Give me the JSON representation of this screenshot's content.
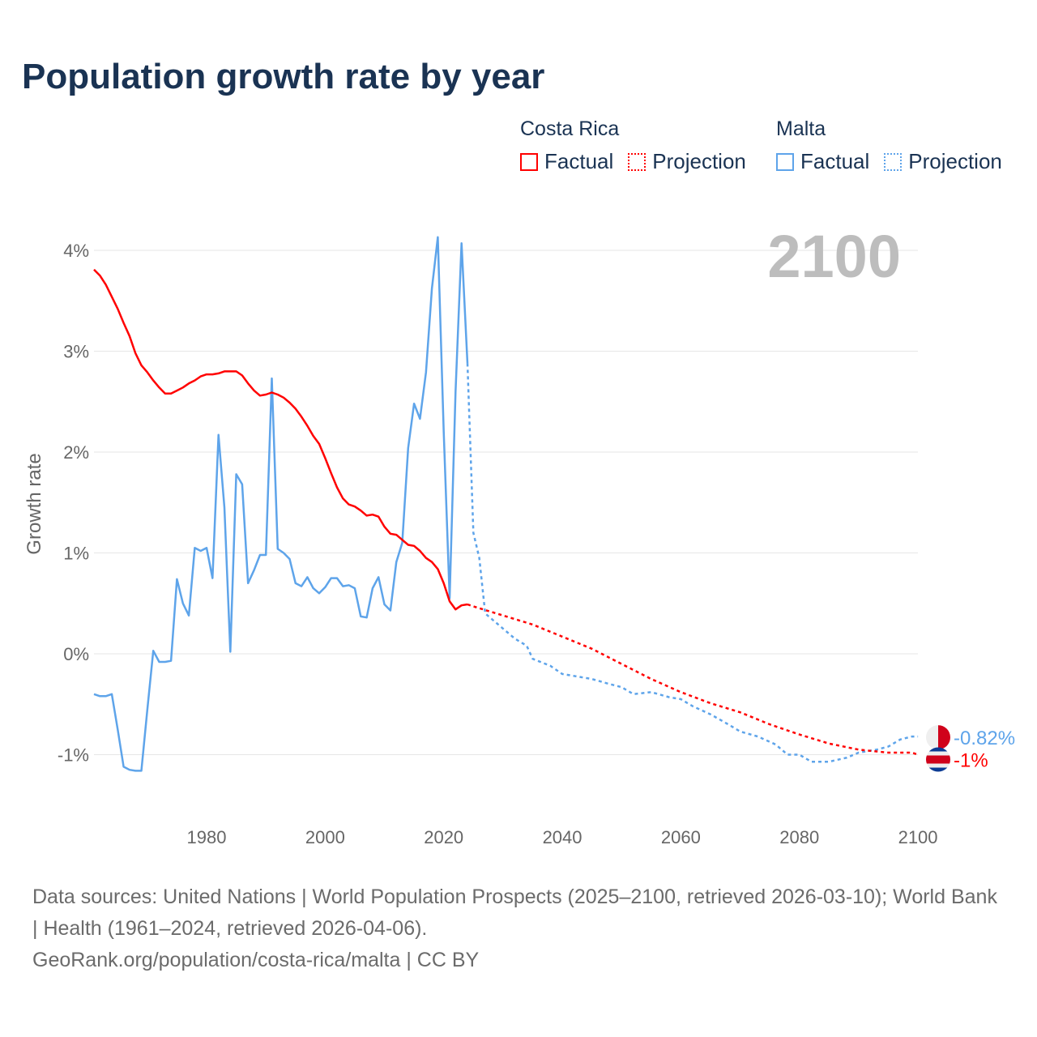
{
  "title": "Population growth rate by year",
  "legend": {
    "groups": [
      {
        "name": "Costa Rica",
        "color": "#ff0000",
        "factual": "Factual",
        "projection": "Projection"
      },
      {
        "name": "Malta",
        "color": "#5ea4ea",
        "factual": "Factual",
        "projection": "Projection"
      }
    ]
  },
  "chart_data": {
    "type": "line",
    "title": "Population growth rate by year",
    "ylabel": "Growth rate",
    "xlabel": "",
    "year_label": "2100",
    "xlim": [
      1961,
      2100
    ],
    "ylim": [
      -1.5,
      4.2
    ],
    "x_ticks": [
      {
        "v": 1980,
        "label": "1980"
      },
      {
        "v": 2000,
        "label": "2000"
      },
      {
        "v": 2020,
        "label": "2020"
      },
      {
        "v": 2040,
        "label": "2040"
      },
      {
        "v": 2060,
        "label": "2060"
      },
      {
        "v": 2080,
        "label": "2080"
      },
      {
        "v": 2100,
        "label": "2100"
      }
    ],
    "y_ticks": [
      {
        "v": 4,
        "label": "4%"
      },
      {
        "v": 3,
        "label": "3%"
      },
      {
        "v": 2,
        "label": "2%"
      },
      {
        "v": 1,
        "label": "1%"
      },
      {
        "v": 0,
        "label": "0%"
      },
      {
        "v": -1,
        "label": "-1%"
      }
    ],
    "grid": true,
    "series": [
      {
        "name": "Costa Rica",
        "color": "#ff0000",
        "end_label": "-1%",
        "factual": [
          [
            1961,
            3.81
          ],
          [
            1962,
            3.75
          ],
          [
            1963,
            3.66
          ],
          [
            1964,
            3.54
          ],
          [
            1965,
            3.42
          ],
          [
            1966,
            3.28
          ],
          [
            1967,
            3.15
          ],
          [
            1968,
            2.98
          ],
          [
            1969,
            2.86
          ],
          [
            1970,
            2.79
          ],
          [
            1971,
            2.71
          ],
          [
            1972,
            2.64
          ],
          [
            1973,
            2.58
          ],
          [
            1974,
            2.58
          ],
          [
            1975,
            2.61
          ],
          [
            1976,
            2.64
          ],
          [
            1977,
            2.68
          ],
          [
            1978,
            2.71
          ],
          [
            1979,
            2.75
          ],
          [
            1980,
            2.77
          ],
          [
            1981,
            2.77
          ],
          [
            1982,
            2.78
          ],
          [
            1983,
            2.8
          ],
          [
            1984,
            2.8
          ],
          [
            1985,
            2.8
          ],
          [
            1986,
            2.76
          ],
          [
            1987,
            2.68
          ],
          [
            1988,
            2.61
          ],
          [
            1989,
            2.56
          ],
          [
            1990,
            2.57
          ],
          [
            1991,
            2.59
          ],
          [
            1992,
            2.57
          ],
          [
            1993,
            2.54
          ],
          [
            1994,
            2.49
          ],
          [
            1995,
            2.43
          ],
          [
            1996,
            2.35
          ],
          [
            1997,
            2.26
          ],
          [
            1998,
            2.16
          ],
          [
            1999,
            2.08
          ],
          [
            2000,
            1.94
          ],
          [
            2001,
            1.79
          ],
          [
            2002,
            1.65
          ],
          [
            2003,
            1.54
          ],
          [
            2004,
            1.48
          ],
          [
            2005,
            1.46
          ],
          [
            2006,
            1.42
          ],
          [
            2007,
            1.37
          ],
          [
            2008,
            1.38
          ],
          [
            2009,
            1.36
          ],
          [
            2010,
            1.26
          ],
          [
            2011,
            1.19
          ],
          [
            2012,
            1.18
          ],
          [
            2013,
            1.13
          ],
          [
            2014,
            1.08
          ],
          [
            2015,
            1.07
          ],
          [
            2016,
            1.02
          ],
          [
            2017,
            0.95
          ],
          [
            2018,
            0.91
          ],
          [
            2019,
            0.84
          ],
          [
            2020,
            0.7
          ],
          [
            2021,
            0.52
          ],
          [
            2022,
            0.44
          ],
          [
            2023,
            0.48
          ],
          [
            2024,
            0.49
          ]
        ],
        "projection": [
          [
            2024,
            0.49
          ],
          [
            2025,
            0.47
          ],
          [
            2030,
            0.38
          ],
          [
            2035,
            0.29
          ],
          [
            2040,
            0.17
          ],
          [
            2045,
            0.05
          ],
          [
            2050,
            -0.1
          ],
          [
            2055,
            -0.25
          ],
          [
            2060,
            -0.38
          ],
          [
            2065,
            -0.49
          ],
          [
            2070,
            -0.58
          ],
          [
            2075,
            -0.7
          ],
          [
            2080,
            -0.8
          ],
          [
            2085,
            -0.89
          ],
          [
            2090,
            -0.95
          ],
          [
            2095,
            -0.98
          ],
          [
            2099,
            -0.98
          ],
          [
            2100,
            -1.0
          ]
        ]
      },
      {
        "name": "Malta",
        "color": "#5ea4ea",
        "end_label": "-0.82%",
        "factual": [
          [
            1961,
            -0.4
          ],
          [
            1962,
            -0.42
          ],
          [
            1963,
            -0.42
          ],
          [
            1964,
            -0.4
          ],
          [
            1965,
            -0.75
          ],
          [
            1966,
            -1.12
          ],
          [
            1967,
            -1.15
          ],
          [
            1968,
            -1.16
          ],
          [
            1969,
            -1.16
          ],
          [
            1970,
            -0.55
          ],
          [
            1971,
            0.03
          ],
          [
            1972,
            -0.08
          ],
          [
            1973,
            -0.08
          ],
          [
            1974,
            -0.07
          ],
          [
            1975,
            0.74
          ],
          [
            1976,
            0.5
          ],
          [
            1977,
            0.38
          ],
          [
            1978,
            1.05
          ],
          [
            1979,
            1.02
          ],
          [
            1980,
            1.05
          ],
          [
            1981,
            0.75
          ],
          [
            1982,
            2.17
          ],
          [
            1983,
            1.45
          ],
          [
            1984,
            0.02
          ],
          [
            1985,
            1.78
          ],
          [
            1986,
            1.68
          ],
          [
            1987,
            0.7
          ],
          [
            1988,
            0.83
          ],
          [
            1989,
            0.98
          ],
          [
            1990,
            0.98
          ],
          [
            1991,
            2.73
          ],
          [
            1992,
            1.04
          ],
          [
            1993,
            1.0
          ],
          [
            1994,
            0.94
          ],
          [
            1995,
            0.7
          ],
          [
            1996,
            0.67
          ],
          [
            1997,
            0.76
          ],
          [
            1998,
            0.65
          ],
          [
            1999,
            0.6
          ],
          [
            2000,
            0.66
          ],
          [
            2001,
            0.75
          ],
          [
            2002,
            0.75
          ],
          [
            2003,
            0.67
          ],
          [
            2004,
            0.68
          ],
          [
            2005,
            0.65
          ],
          [
            2006,
            0.37
          ],
          [
            2007,
            0.36
          ],
          [
            2008,
            0.65
          ],
          [
            2009,
            0.76
          ],
          [
            2010,
            0.49
          ],
          [
            2011,
            0.43
          ],
          [
            2012,
            0.91
          ],
          [
            2013,
            1.1
          ],
          [
            2014,
            2.04
          ],
          [
            2015,
            2.48
          ],
          [
            2016,
            2.33
          ],
          [
            2017,
            2.79
          ],
          [
            2018,
            3.62
          ],
          [
            2019,
            4.13
          ],
          [
            2020,
            2.2
          ],
          [
            2021,
            0.55
          ],
          [
            2022,
            2.6
          ],
          [
            2023,
            4.07
          ],
          [
            2024,
            2.88
          ]
        ],
        "projection": [
          [
            2024,
            2.88
          ],
          [
            2025,
            1.2
          ],
          [
            2026,
            0.95
          ],
          [
            2027,
            0.4
          ],
          [
            2028,
            0.35
          ],
          [
            2030,
            0.25
          ],
          [
            2032,
            0.15
          ],
          [
            2034,
            0.08
          ],
          [
            2035,
            -0.05
          ],
          [
            2038,
            -0.12
          ],
          [
            2040,
            -0.2
          ],
          [
            2045,
            -0.25
          ],
          [
            2048,
            -0.3
          ],
          [
            2050,
            -0.33
          ],
          [
            2052,
            -0.4
          ],
          [
            2055,
            -0.38
          ],
          [
            2058,
            -0.43
          ],
          [
            2060,
            -0.45
          ],
          [
            2062,
            -0.52
          ],
          [
            2065,
            -0.6
          ],
          [
            2068,
            -0.7
          ],
          [
            2070,
            -0.77
          ],
          [
            2073,
            -0.82
          ],
          [
            2076,
            -0.9
          ],
          [
            2078,
            -1.0
          ],
          [
            2080,
            -1.0
          ],
          [
            2082,
            -1.07
          ],
          [
            2085,
            -1.07
          ],
          [
            2088,
            -1.03
          ],
          [
            2090,
            -0.98
          ],
          [
            2093,
            -0.95
          ],
          [
            2095,
            -0.92
          ],
          [
            2097,
            -0.85
          ],
          [
            2099,
            -0.82
          ],
          [
            2100,
            -0.82
          ]
        ]
      }
    ]
  },
  "source": {
    "line1": "Data sources: United Nations | World Population Prospects (2025–2100, retrieved 2026-03-10); World Bank | Health (1961–2024, retrieved 2026-04-06).",
    "line2": "GeoRank.org/population/costa-rica/malta | CC BY"
  }
}
